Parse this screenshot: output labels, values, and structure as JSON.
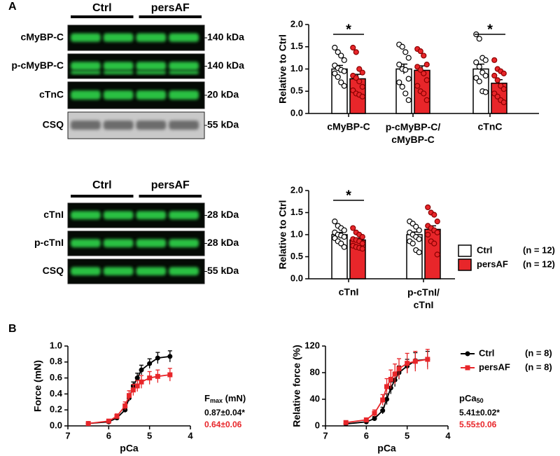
{
  "panels": [
    "A",
    "B"
  ],
  "blots": [
    {
      "groups": [
        "Ctrl",
        "persAF"
      ],
      "rows": [
        {
          "label": "cMyBP-C",
          "size": "140 kDa",
          "style": "green"
        },
        {
          "label": "p-cMyBP-C",
          "size": "140 kDa",
          "style": "green"
        },
        {
          "label": "cTnC",
          "size": "20 kDa",
          "style": "green"
        },
        {
          "label": "CSQ",
          "size": "55 kDa",
          "style": "gray"
        }
      ]
    },
    {
      "groups": [
        "Ctrl",
        "persAF"
      ],
      "rows": [
        {
          "label": "cTnI",
          "size": "28 kDa",
          "style": "green"
        },
        {
          "label": "p-cTnI",
          "size": "28 kDa",
          "style": "green"
        },
        {
          "label": "CSQ",
          "size": "55 kDa",
          "style": "green"
        }
      ]
    }
  ],
  "chart_data": [
    {
      "type": "bar",
      "y_label": "Relative to Ctrl",
      "categories": [
        "cMyBP-C",
        "p-cMyBP-C/\ncMyBP-C",
        "cTnC"
      ],
      "ylim": [
        0,
        2
      ],
      "yticks": [
        {
          "value": 0,
          "label": "0.0"
        },
        {
          "value": 0.5,
          "label": "0.5"
        },
        {
          "value": 1,
          "label": "1.0"
        },
        {
          "value": 1.5,
          "label": "1.5"
        },
        {
          "value": 2,
          "label": "2.0"
        }
      ],
      "series": [
        {
          "name": "Ctrl",
          "color": "#ffffff",
          "values": [
            1.0,
            1.0,
            1.0
          ],
          "errors": [
            0.08,
            0.11,
            0.11
          ],
          "points": [
            [
              1.48,
              1.38,
              1.3,
              1.2,
              1.08,
              1.02,
              0.98,
              0.95,
              0.9,
              0.82,
              0.7,
              0.62
            ],
            [
              1.55,
              1.5,
              1.38,
              1.25,
              1.1,
              1.0,
              0.98,
              0.78,
              0.7,
              0.6,
              0.45,
              0.3
            ],
            [
              1.78,
              1.68,
              1.25,
              1.2,
              1.15,
              1.05,
              0.92,
              0.85,
              0.8,
              0.72,
              0.5,
              0.48
            ]
          ]
        },
        {
          "name": "persAF",
          "color": "#e8262a",
          "values": [
            0.78,
            0.97,
            0.68
          ],
          "errors": [
            0.1,
            0.1,
            0.08
          ],
          "points": [
            [
              1.48,
              1.38,
              1.0,
              0.92,
              0.85,
              0.8,
              0.72,
              0.6,
              0.52,
              0.45,
              0.42,
              0.38
            ],
            [
              1.45,
              1.4,
              1.3,
              1.1,
              1.05,
              0.98,
              0.9,
              0.75,
              0.62,
              0.5,
              0.45,
              0.3
            ],
            [
              1.2,
              1.0,
              0.95,
              0.9,
              0.85,
              0.75,
              0.62,
              0.55,
              0.45,
              0.38,
              0.3,
              0.25
            ]
          ]
        }
      ],
      "annotations": [
        {
          "text": "*",
          "category": "cMyBP-C"
        },
        {
          "text": "*",
          "category": "cTnC"
        }
      ]
    },
    {
      "type": "bar",
      "y_label": "Relative to Ctrl",
      "categories": [
        "cTnI",
        "p-cTnI/\ncTnI"
      ],
      "ylim": [
        0,
        2
      ],
      "yticks": [
        {
          "value": 0,
          "label": "0.0"
        },
        {
          "value": 0.5,
          "label": "0.5"
        },
        {
          "value": 1,
          "label": "1.0"
        },
        {
          "value": 1.5,
          "label": "1.5"
        },
        {
          "value": 2,
          "label": "2.0"
        }
      ],
      "legend": true,
      "series": [
        {
          "name": "Ctrl",
          "n_label": "(n = 12)",
          "color": "#ffffff",
          "values": [
            1.0,
            1.0
          ],
          "errors": [
            0.05,
            0.06
          ],
          "points": [
            [
              1.3,
              1.2,
              1.15,
              1.1,
              1.05,
              1.0,
              0.98,
              0.95,
              0.92,
              0.85,
              0.8,
              0.72
            ],
            [
              1.3,
              1.25,
              1.18,
              1.1,
              1.05,
              1.0,
              0.95,
              0.9,
              0.85,
              0.8,
              0.65,
              0.6
            ]
          ]
        },
        {
          "name": "persAF",
          "n_label": "(n = 12)",
          "color": "#e8262a",
          "values": [
            0.88,
            1.12
          ],
          "errors": [
            0.04,
            0.08
          ],
          "points": [
            [
              1.15,
              1.05,
              1.0,
              0.95,
              0.9,
              0.88,
              0.85,
              0.8,
              0.75,
              0.72,
              0.7,
              0.68
            ],
            [
              1.62,
              1.5,
              1.45,
              1.3,
              1.2,
              1.15,
              1.1,
              1.05,
              1.0,
              0.85,
              0.8,
              0.55
            ]
          ]
        }
      ],
      "annotations": [
        {
          "text": "*",
          "category": "cTnI"
        }
      ]
    },
    {
      "type": "line",
      "x_label": "pCa",
      "y_label": "Force (mN)",
      "x": [
        6.5,
        6.0,
        5.8,
        5.6,
        5.5,
        5.4,
        5.3,
        5.2,
        5.0,
        4.8,
        4.5
      ],
      "xlim": [
        7,
        4
      ],
      "xticks": [
        7,
        6,
        5,
        4
      ],
      "ylim": [
        0,
        1
      ],
      "yticks": [
        {
          "value": 0,
          "label": "0.0"
        },
        {
          "value": 0.2,
          "label": "0.2"
        },
        {
          "value": 0.4,
          "label": "0.4"
        },
        {
          "value": 0.6,
          "label": "0.6"
        },
        {
          "value": 0.8,
          "label": "0.8"
        },
        {
          "value": 1,
          "label": "1.0"
        }
      ],
      "series": [
        {
          "name": "Ctrl",
          "color": "#000000",
          "marker": "circle",
          "values": [
            0.03,
            0.05,
            0.1,
            0.2,
            0.35,
            0.5,
            0.6,
            0.7,
            0.78,
            0.85,
            0.87
          ],
          "errors": [
            0.01,
            0.01,
            0.02,
            0.03,
            0.04,
            0.05,
            0.06,
            0.06,
            0.06,
            0.07,
            0.07
          ]
        },
        {
          "name": "persAF",
          "color": "#e8262a",
          "marker": "square",
          "values": [
            0.03,
            0.06,
            0.12,
            0.25,
            0.38,
            0.45,
            0.5,
            0.55,
            0.6,
            0.62,
            0.64
          ],
          "errors": [
            0.01,
            0.02,
            0.03,
            0.05,
            0.06,
            0.07,
            0.07,
            0.08,
            0.08,
            0.08,
            0.08
          ]
        }
      ],
      "stats_title": {
        "text": "F",
        "sub": "max",
        "suffix": " (mN)"
      },
      "stats": [
        "0.87±0.04*",
        "0.64±0.06"
      ]
    },
    {
      "type": "line",
      "x_label": "pCa",
      "y_label": "Relative force (%)",
      "x": [
        6.5,
        6.0,
        5.8,
        5.6,
        5.5,
        5.4,
        5.3,
        5.2,
        5.0,
        4.8,
        4.5
      ],
      "xlim": [
        7,
        4
      ],
      "xticks": [
        7,
        6,
        5,
        4
      ],
      "ylim": [
        0,
        120
      ],
      "yticks": [
        0,
        40,
        80,
        120
      ],
      "legend": true,
      "series": [
        {
          "name": "Ctrl",
          "n_label": "(n = 8)",
          "color": "#000000",
          "marker": "circle",
          "values": [
            3,
            6,
            11,
            23,
            40,
            57,
            69,
            80,
            90,
            98,
            100
          ],
          "errors": [
            1,
            2,
            3,
            5,
            8,
            9,
            10,
            10,
            10,
            12,
            12
          ]
        },
        {
          "name": "persAF",
          "n_label": "(n = 8)",
          "color": "#e8262a",
          "marker": "square",
          "values": [
            5,
            9,
            19,
            39,
            59,
            70,
            78,
            86,
            94,
            97,
            100
          ],
          "errors": [
            2,
            3,
            5,
            8,
            12,
            14,
            15,
            15,
            15,
            15,
            15
          ]
        }
      ],
      "stats_title": {
        "text": "pCa",
        "sub": "50"
      },
      "stats": [
        "5.41±0.02*",
        "5.55±0.06"
      ]
    }
  ]
}
